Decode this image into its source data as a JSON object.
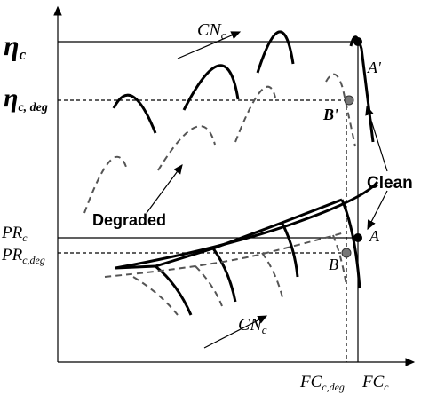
{
  "labels": {
    "eta_c": {
      "main": "η",
      "sub": "c"
    },
    "eta_c_deg": {
      "main": "η",
      "sub": "c, deg"
    },
    "cn_top": {
      "main": "CN",
      "sub": "c"
    },
    "cn_bottom": {
      "main": "CN",
      "sub": "c"
    },
    "a_prime": "A'",
    "b_prime": "B'",
    "clean": "Clean",
    "degraded": "Degraded",
    "pr_c": {
      "main": "PR",
      "sub": "c"
    },
    "pr_c_deg": {
      "main": "PR",
      "sub": "c,deg"
    },
    "a": "A",
    "b": "B",
    "fc_c_deg": {
      "main": "FC",
      "sub": "c,deg"
    },
    "fc_c": {
      "main": "FC",
      "sub": "c"
    }
  }
}
